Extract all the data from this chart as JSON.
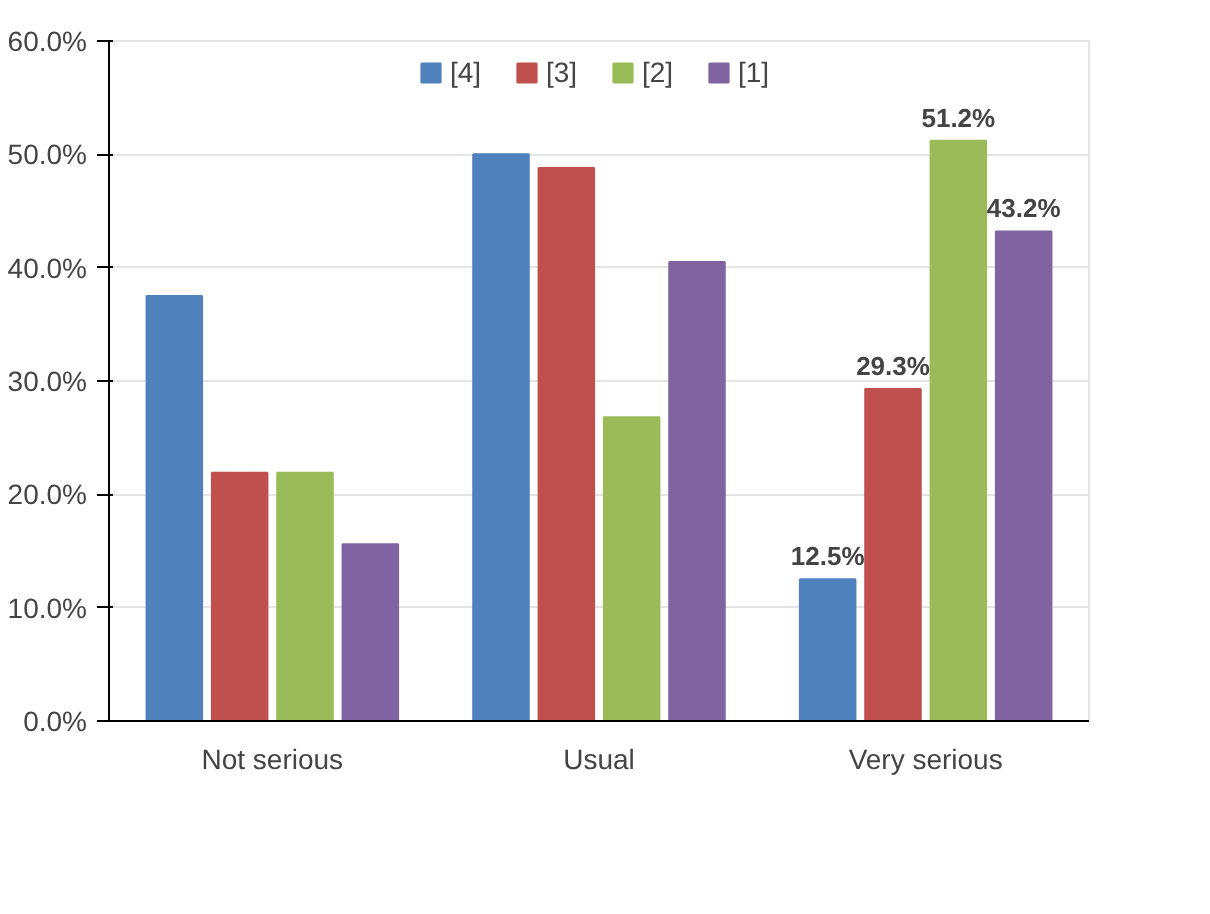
{
  "chart_data": {
    "type": "bar",
    "categories": [
      "Not serious",
      "Usual",
      "Very serious"
    ],
    "series": [
      {
        "name": "[4]",
        "color": "#4f81bd",
        "values": [
          37.5,
          50.0,
          12.5
        ],
        "value_labels": [
          null,
          null,
          "12.5%"
        ]
      },
      {
        "name": "[3]",
        "color": "#c0504d",
        "values": [
          21.9,
          48.8,
          29.3
        ],
        "value_labels": [
          null,
          null,
          "29.3%"
        ]
      },
      {
        "name": "[2]",
        "color": "#9bbb59",
        "values": [
          21.9,
          26.8,
          51.2
        ],
        "value_labels": [
          null,
          null,
          "51.2%"
        ]
      },
      {
        "name": "[1]",
        "color": "#8064a2",
        "values": [
          15.6,
          40.5,
          43.2
        ],
        "value_labels": [
          null,
          null,
          "43.2%"
        ]
      }
    ],
    "ylim": [
      0,
      60
    ],
    "yticks": [
      {
        "value": 0,
        "label": "0.0%"
      },
      {
        "value": 10,
        "label": "10.0%"
      },
      {
        "value": 20,
        "label": "20.0%"
      },
      {
        "value": 30,
        "label": "30.0%"
      },
      {
        "value": 40,
        "label": "40.0%"
      },
      {
        "value": 50,
        "label": "50.0%"
      },
      {
        "value": 60,
        "label": "60.0%"
      }
    ],
    "grid": "y",
    "legend": "top"
  }
}
